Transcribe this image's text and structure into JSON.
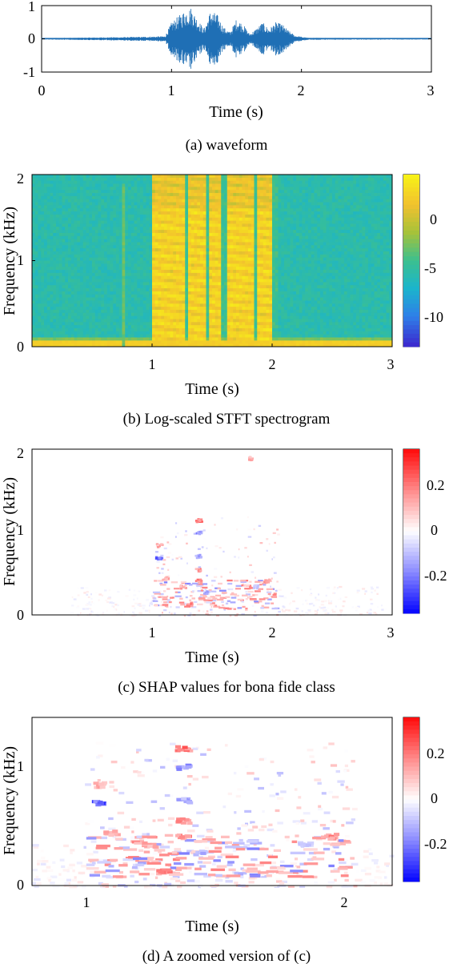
{
  "colors": {
    "waveform": "#1f6fb5",
    "axis": "#000000",
    "jet": [
      "#3b2ccf",
      "#2f7fe8",
      "#1bb4cc",
      "#3cc08f",
      "#a6c23a",
      "#f2c12e",
      "#f7f018"
    ],
    "diverging": [
      "#0b0bff",
      "#8c8cff",
      "#ffffff",
      "#ff8c8c",
      "#ff1010"
    ]
  },
  "chart_data": [
    {
      "type": "line",
      "caption": "(a) waveform",
      "xlabel": "Time (s)",
      "ylabel": "",
      "xlim": [
        0,
        3
      ],
      "ylim": [
        -1,
        1
      ],
      "xticks": [
        "0",
        "1",
        "2",
        "3"
      ],
      "yticks": [
        "1",
        "0",
        "-1"
      ],
      "grid": false,
      "series": [
        {
          "envelope_time_s": [
            0.0,
            0.75,
            0.95,
            1.0,
            1.1,
            1.15,
            1.2,
            1.25,
            1.3,
            1.35,
            1.4,
            1.45,
            1.5,
            1.55,
            1.6,
            1.65,
            1.7,
            1.75,
            1.8,
            1.85,
            1.9,
            1.95,
            2.05,
            3.0
          ],
          "envelope_amplitude": [
            0.02,
            0.06,
            0.08,
            0.5,
            0.85,
            0.95,
            0.6,
            0.3,
            0.85,
            0.75,
            0.35,
            0.2,
            0.6,
            0.45,
            0.15,
            0.3,
            0.5,
            0.3,
            0.5,
            0.45,
            0.25,
            0.1,
            0.03,
            0.02
          ]
        }
      ]
    },
    {
      "type": "heatmap",
      "caption": "(b) Log-scaled STFT spectrogram",
      "xlabel": "Time (s)",
      "ylabel": "Frequency (kHz)",
      "xlim": [
        0,
        3
      ],
      "ylim": [
        0,
        2
      ],
      "xticks": [
        "1",
        "2",
        "3"
      ],
      "yticks": [
        "2",
        "1",
        "0"
      ],
      "colorbar_ticks": [
        "0",
        "-5",
        "-10"
      ],
      "colorbar_range": [
        -13,
        5
      ],
      "speech_region_s": [
        1.0,
        2.05
      ],
      "high_energy_segments_s": [
        [
          1.0,
          1.28
        ],
        [
          1.3,
          1.45
        ],
        [
          1.47,
          1.58
        ],
        [
          1.62,
          1.85
        ],
        [
          1.87,
          2.0
        ]
      ]
    },
    {
      "type": "heatmap",
      "caption": "(c) SHAP values for bona fide class",
      "xlabel": "Time (s)",
      "ylabel": "Frequency (kHz)",
      "xlim": [
        0,
        3
      ],
      "ylim": [
        0,
        2
      ],
      "xticks": [
        "1",
        "2",
        "3"
      ],
      "yticks": [
        "2",
        "1",
        "0"
      ],
      "colorbar_ticks": [
        "0.2",
        "0",
        "-0.2"
      ],
      "colorbar_range": [
        -0.35,
        0.35
      ],
      "clusters": [
        {
          "t": 1.05,
          "f": 0.7,
          "v": -0.3
        },
        {
          "t": 1.05,
          "f": 0.85,
          "v": 0.15
        },
        {
          "t": 1.1,
          "f": 0.45,
          "v": 0.15
        },
        {
          "t": 1.38,
          "f": 1.15,
          "v": 0.25
        },
        {
          "t": 1.38,
          "f": 1.0,
          "v": -0.2
        },
        {
          "t": 1.38,
          "f": 0.72,
          "v": -0.15
        },
        {
          "t": 1.38,
          "f": 0.55,
          "v": 0.2
        },
        {
          "t": 1.38,
          "f": 0.42,
          "v": 0.2
        },
        {
          "t": 1.25,
          "f": 0.35,
          "v": 0.15
        },
        {
          "t": 1.45,
          "f": 0.28,
          "v": -0.15
        },
        {
          "t": 1.3,
          "f": 0.13,
          "v": 0.2
        },
        {
          "t": 1.95,
          "f": 0.42,
          "v": 0.2
        },
        {
          "t": 1.85,
          "f": 0.35,
          "v": -0.1
        },
        {
          "t": 1.8,
          "f": 1.9,
          "v": 0.15
        }
      ]
    },
    {
      "type": "heatmap",
      "caption": "(d) A zoomed version of (c)",
      "xlabel": "Time (s)",
      "ylabel": "Frequency (kHz)",
      "xlim": [
        0.8,
        2.2
      ],
      "ylim": [
        0,
        1.4
      ],
      "xticks": [
        "1",
        "2"
      ],
      "yticks": [
        "1",
        "0"
      ],
      "colorbar_ticks": [
        "0.2",
        "0",
        "-0.2"
      ],
      "colorbar_range": [
        -0.35,
        0.35
      ]
    }
  ]
}
